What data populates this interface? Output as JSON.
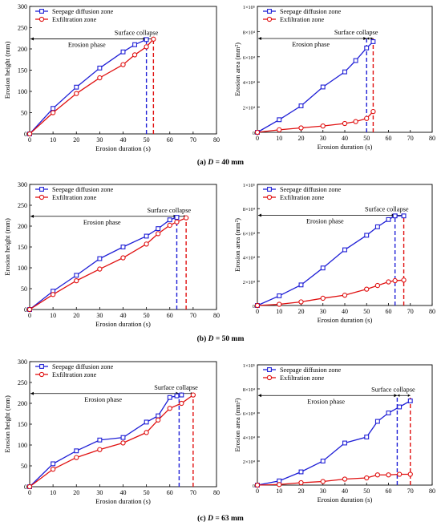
{
  "captions": [
    {
      "label": "(a)",
      "var": "D",
      "rest": " = 40 mm"
    },
    {
      "label": "(b)",
      "var": "D",
      "rest": " = 50 mm"
    },
    {
      "label": "(c)",
      "var": "D",
      "rest": " = 63 mm"
    }
  ],
  "colors": {
    "seepage": "#1f1fd6",
    "exfiltration": "#e01010",
    "axis": "#000000"
  },
  "chart_data": [
    {
      "id": "a-height",
      "type": "line",
      "xlabel": "Erosion duration (s)",
      "ylabel": "Erosion height (mm)",
      "xlim": [
        0,
        80
      ],
      "ylim": [
        0,
        300
      ],
      "xticks": [
        "0",
        "10",
        "20",
        "30",
        "40",
        "50",
        "60",
        "70",
        "80"
      ],
      "yticks": [
        "0",
        "50",
        "100",
        "150",
        "200",
        "250",
        "300"
      ],
      "legend": "top-left",
      "series": [
        {
          "name": "Seepage diffusion zone",
          "x": [
            0,
            10,
            20,
            30,
            40,
            45,
            50
          ],
          "values": [
            0,
            60,
            110,
            155,
            193,
            210,
            222
          ]
        },
        {
          "name": "Exfiltration zone",
          "x": [
            0,
            10,
            20,
            30,
            40,
            45,
            50,
            53
          ],
          "values": [
            0,
            50,
            95,
            132,
            163,
            186,
            205,
            223
          ]
        }
      ],
      "vlines": [
        50,
        53
      ],
      "annotations": {
        "phase": "Erosion phase",
        "collapse": "Surface collapse"
      }
    },
    {
      "id": "a-area",
      "type": "line",
      "xlabel": "Erosion duration (s)",
      "ylabel": "Erosion area (mm²)",
      "xlim": [
        0,
        80
      ],
      "ylim": [
        0,
        100000
      ],
      "xticks": [
        "0",
        "10",
        "20",
        "30",
        "40",
        "50",
        "60",
        "70",
        "80"
      ],
      "yticks": [
        "0",
        "2×10⁴",
        "4×10⁴",
        "6×10⁴",
        "8×10⁴",
        "1×10⁵"
      ],
      "legend": "top-left",
      "series": [
        {
          "name": "Seepage diffusion zone",
          "x": [
            0,
            10,
            20,
            30,
            40,
            45,
            50,
            53
          ],
          "values": [
            0,
            10000,
            21000,
            36000,
            48000,
            57000,
            67000,
            72000
          ]
        },
        {
          "name": "Exfiltration zone",
          "x": [
            0,
            10,
            20,
            30,
            40,
            45,
            50,
            53
          ],
          "values": [
            0,
            2000,
            3500,
            5000,
            7000,
            8500,
            11000,
            16500
          ]
        }
      ],
      "vlines": [
        50,
        53
      ],
      "annotations": {
        "phase": "Erosion phase",
        "collapse": "Surface collapse"
      }
    },
    {
      "id": "b-height",
      "type": "line",
      "xlabel": "Erosion duration (s)",
      "ylabel": "Erosion height (mm)",
      "xlim": [
        0,
        80
      ],
      "ylim": [
        0,
        300
      ],
      "xticks": [
        "0",
        "10",
        "20",
        "30",
        "40",
        "50",
        "60",
        "70",
        "80"
      ],
      "yticks": [
        "0",
        "50",
        "100",
        "150",
        "200",
        "250",
        "300"
      ],
      "legend": "top-left",
      "series": [
        {
          "name": "Seepage diffusion zone",
          "x": [
            0,
            10,
            20,
            30,
            40,
            50,
            55,
            60,
            63
          ],
          "values": [
            0,
            44,
            82,
            122,
            150,
            176,
            194,
            215,
            221
          ]
        },
        {
          "name": "Exfiltration zone",
          "x": [
            0,
            10,
            20,
            30,
            40,
            50,
            55,
            60,
            63,
            67
          ],
          "values": [
            0,
            36,
            69,
            97,
            124,
            157,
            182,
            202,
            210,
            220
          ]
        }
      ],
      "vlines": [
        63,
        67
      ],
      "annotations": {
        "phase": "Erosion phase",
        "collapse": "Surface collapse"
      }
    },
    {
      "id": "b-area",
      "type": "line",
      "xlabel": "Erosion duration (s)",
      "ylabel": "Erosion area (mm²)",
      "xlim": [
        0,
        80
      ],
      "ylim": [
        0,
        100000
      ],
      "xticks": [
        "0",
        "10",
        "20",
        "30",
        "40",
        "50",
        "60",
        "70",
        "80"
      ],
      "yticks": [
        "0",
        "2×10⁴",
        "4×10⁴",
        "6×10⁴",
        "8×10⁴",
        "1×10⁵"
      ],
      "legend": "top-left",
      "series": [
        {
          "name": "Seepage diffusion zone",
          "x": [
            0,
            10,
            20,
            30,
            40,
            50,
            55,
            60,
            63,
            67
          ],
          "values": [
            0,
            8000,
            17000,
            31000,
            46000,
            58000,
            65000,
            71000,
            74000,
            74000
          ]
        },
        {
          "name": "Exfiltration zone",
          "x": [
            0,
            10,
            20,
            30,
            40,
            50,
            55,
            60,
            63,
            67
          ],
          "values": [
            0,
            1000,
            3000,
            6000,
            8500,
            13500,
            16500,
            19500,
            20500,
            21000
          ]
        }
      ],
      "vlines": [
        63,
        67
      ],
      "annotations": {
        "phase": "Erosion phase",
        "collapse": "Surface collapse"
      }
    },
    {
      "id": "c-height",
      "type": "line",
      "xlabel": "Erosion duration (s)",
      "ylabel": "Erosion height (mm)",
      "xlim": [
        0,
        80
      ],
      "ylim": [
        0,
        300
      ],
      "xticks": [
        "0",
        "10",
        "20",
        "30",
        "40",
        "50",
        "60",
        "70",
        "80"
      ],
      "yticks": [
        "0",
        "50",
        "100",
        "150",
        "200",
        "250",
        "300"
      ],
      "legend": "top-left",
      "series": [
        {
          "name": "Seepage diffusion zone",
          "x": [
            0,
            10,
            20,
            30,
            40,
            50,
            55,
            60,
            63,
            65
          ],
          "values": [
            0,
            55,
            86,
            112,
            118,
            155,
            170,
            214,
            218,
            220
          ]
        },
        {
          "name": "Exfiltration zone",
          "x": [
            0,
            10,
            20,
            30,
            40,
            50,
            55,
            60,
            65,
            70
          ],
          "values": [
            0,
            42,
            70,
            89,
            105,
            130,
            160,
            188,
            200,
            220
          ]
        }
      ],
      "vlines": [
        64,
        70
      ],
      "annotations": {
        "phase": "Erosion phase",
        "collapse": "Surface collapse"
      }
    },
    {
      "id": "c-area",
      "type": "line",
      "xlabel": "Erosion duration (s)",
      "ylabel": "Erosion area (mm²)",
      "xlim": [
        0,
        80
      ],
      "ylim": [
        0,
        100000
      ],
      "xticks": [
        "0",
        "10",
        "20",
        "30",
        "40",
        "50",
        "60",
        "70",
        "80"
      ],
      "yticks": [
        "0",
        "2×10⁴",
        "4×10⁴",
        "6×10⁴",
        "8×10⁴",
        "1×10⁵"
      ],
      "legend": "top-left",
      "series": [
        {
          "name": "Seepage diffusion zone",
          "x": [
            0,
            10,
            20,
            30,
            40,
            50,
            55,
            60,
            65,
            70
          ],
          "values": [
            0,
            3500,
            11000,
            20000,
            35000,
            40000,
            53000,
            60000,
            65000,
            70000
          ]
        },
        {
          "name": "Exfiltration zone",
          "x": [
            0,
            10,
            20,
            30,
            40,
            50,
            55,
            60,
            65,
            70
          ],
          "values": [
            0,
            500,
            2000,
            3000,
            5000,
            6000,
            8500,
            8500,
            9000,
            9000
          ]
        }
      ],
      "vlines": [
        64,
        70
      ],
      "annotations": {
        "phase": "Erosion phase",
        "collapse": "Surface collapse"
      }
    }
  ]
}
